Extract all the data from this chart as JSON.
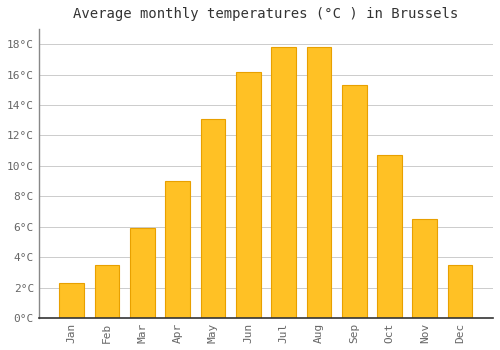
{
  "title": "Average monthly temperatures (°C ) in Brussels",
  "months": [
    "Jan",
    "Feb",
    "Mar",
    "Apr",
    "May",
    "Jun",
    "Jul",
    "Aug",
    "Sep",
    "Oct",
    "Nov",
    "Dec"
  ],
  "temperatures": [
    2.3,
    3.5,
    5.9,
    9.0,
    13.1,
    16.2,
    17.8,
    17.8,
    15.3,
    10.7,
    6.5,
    3.5
  ],
  "bar_color": "#FFC125",
  "bar_edge_color": "#E8A000",
  "background_color": "#FFFFFF",
  "plot_bg_color": "#FFFFFF",
  "grid_color": "#CCCCCC",
  "ylim": [
    0,
    19
  ],
  "yticks": [
    0,
    2,
    4,
    6,
    8,
    10,
    12,
    14,
    16,
    18
  ],
  "ylabel_suffix": "°C",
  "title_fontsize": 10,
  "tick_fontsize": 8,
  "font_family": "monospace"
}
